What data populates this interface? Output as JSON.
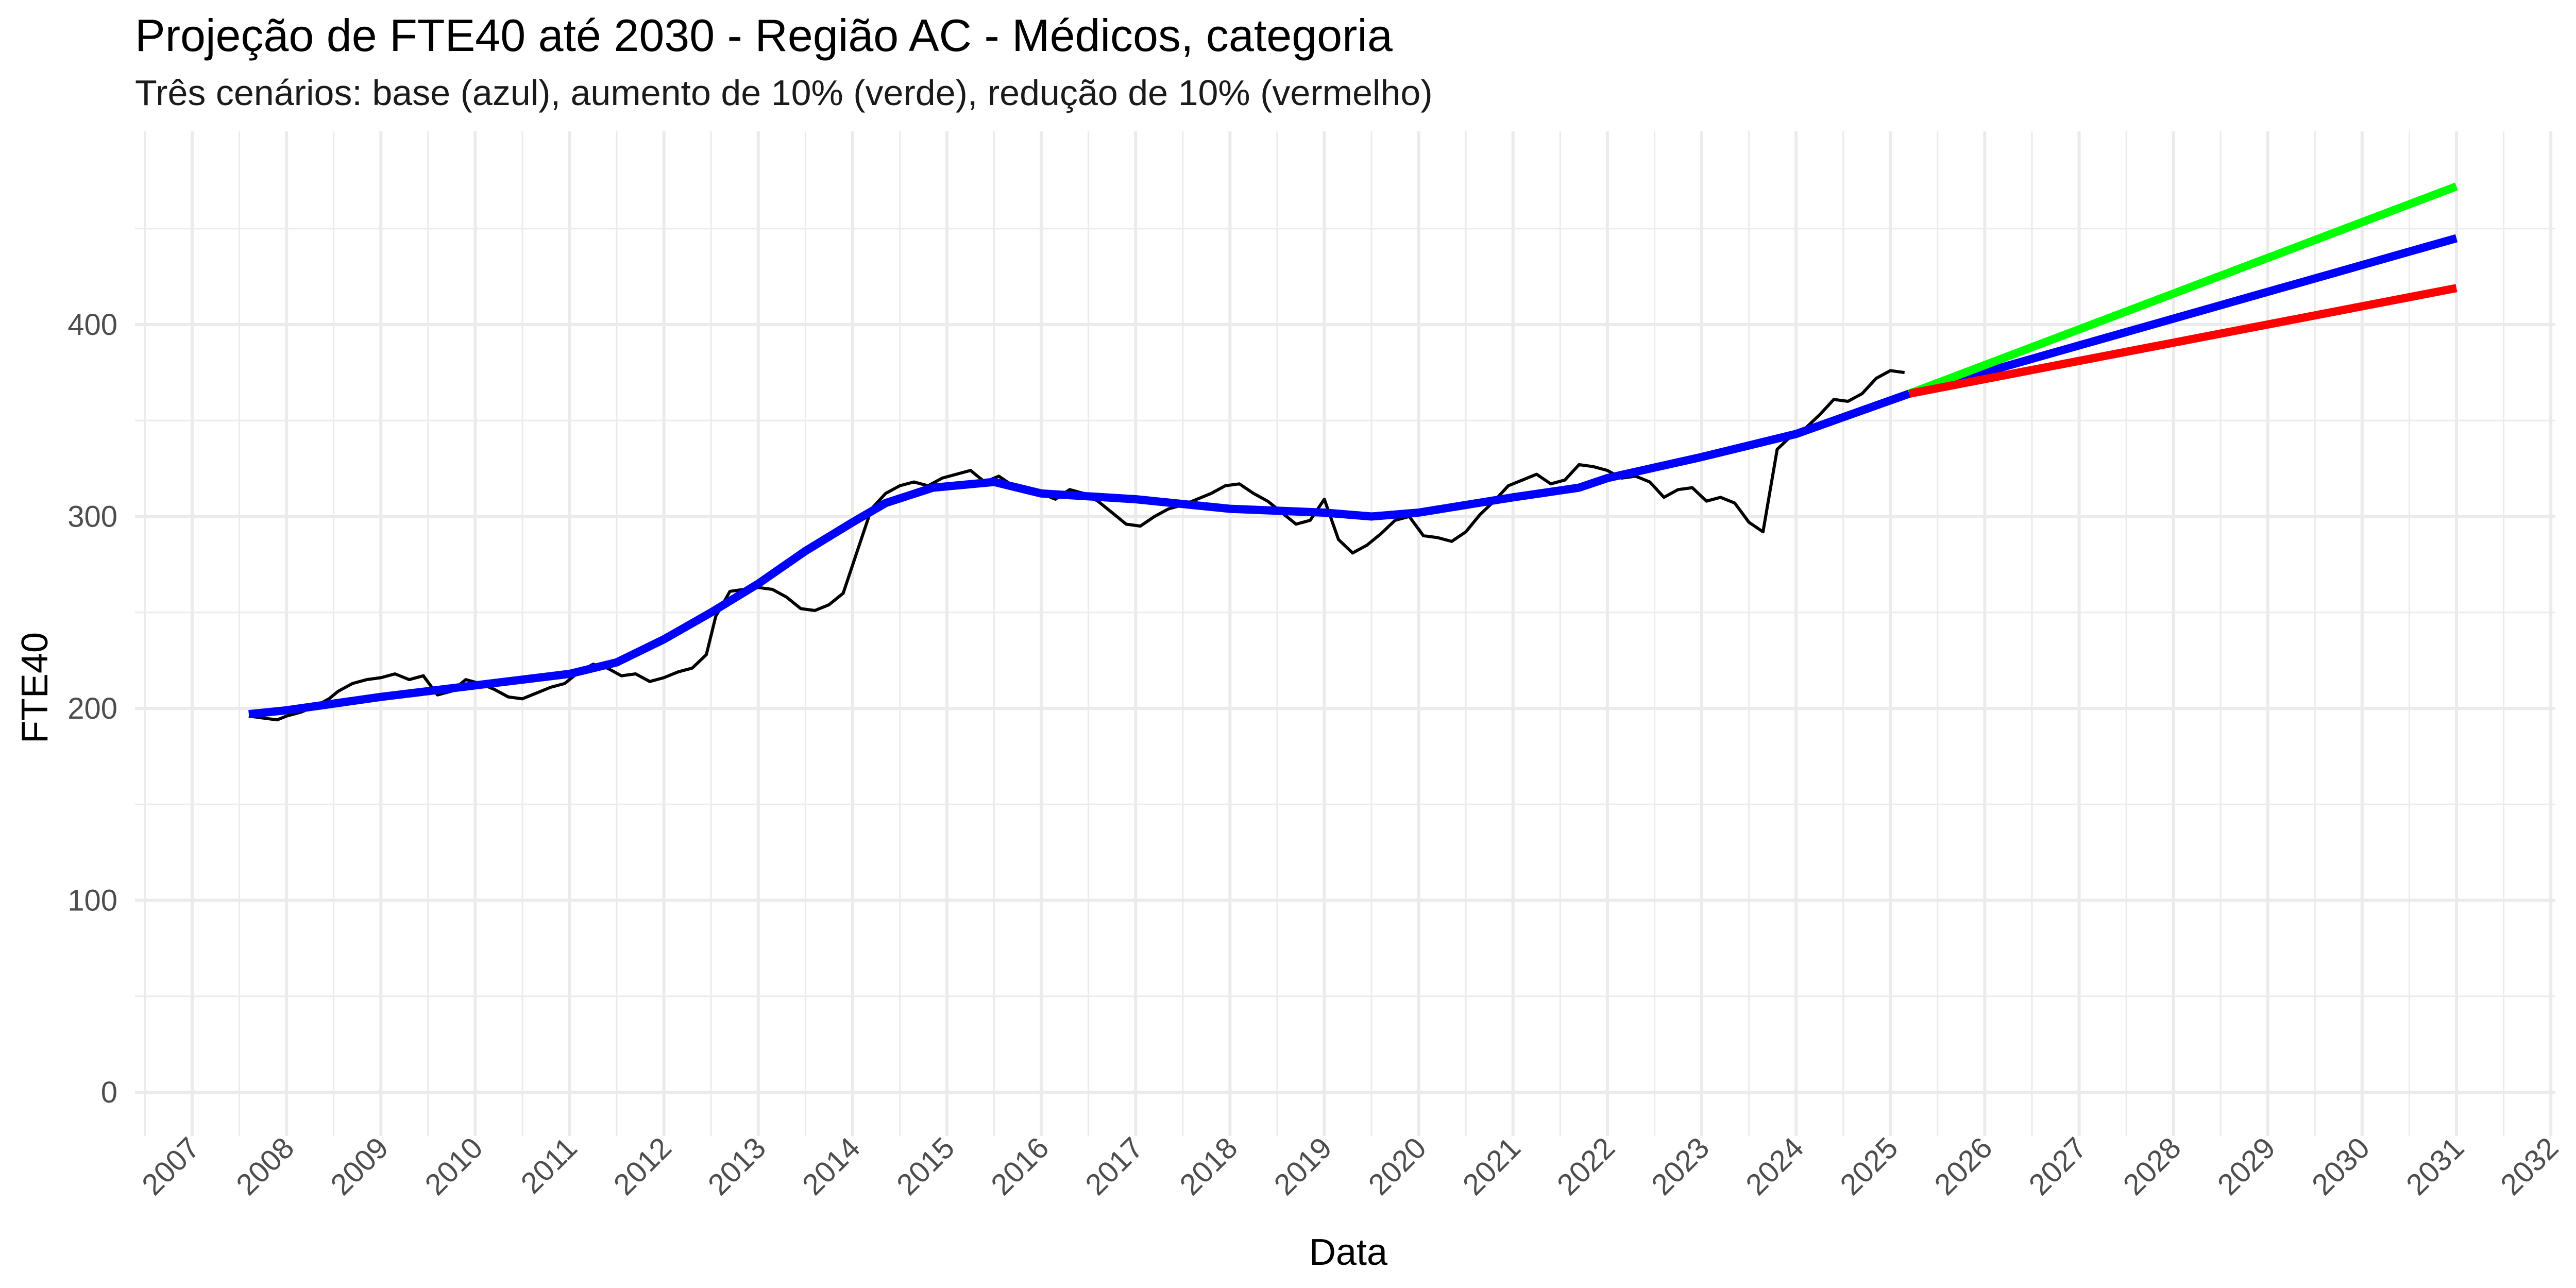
{
  "chart_data": {
    "type": "line",
    "title": "Projeção de FTE40 até 2030 - Região AC - Médicos, categoria",
    "subtitle": "Três cenários: base (azul), aumento de 10% (verde), redução de 10% (vermelho)",
    "xlabel": "Data",
    "ylabel": "FTE40",
    "xlim": [
      2006.5,
      2032.2
    ],
    "ylim": [
      -20,
      495
    ],
    "y_ticks": [
      0,
      100,
      200,
      300,
      400
    ],
    "x_ticks": [
      2007,
      2008,
      2009,
      2010,
      2011,
      2012,
      2013,
      2014,
      2015,
      2016,
      2017,
      2018,
      2019,
      2020,
      2021,
      2022,
      2023,
      2024,
      2025,
      2026,
      2027,
      2028,
      2029,
      2030,
      2031,
      2032
    ],
    "grid": true,
    "legend": "none",
    "series": [
      {
        "color": "#000000",
        "x": [
          2007.6,
          2007.75,
          2007.9,
          2008.0,
          2008.15,
          2008.3,
          2008.45,
          2008.55,
          2008.7,
          2008.85,
          2009.0,
          2009.15,
          2009.3,
          2009.45,
          2009.6,
          2009.75,
          2009.9,
          2010.05,
          2010.2,
          2010.35,
          2010.5,
          2010.65,
          2010.8,
          2010.95,
          2011.1,
          2011.25,
          2011.4,
          2011.55,
          2011.7,
          2011.85,
          2012.0,
          2012.15,
          2012.3,
          2012.45,
          2012.55,
          2012.7,
          2012.85,
          2013.0,
          2013.15,
          2013.3,
          2013.45,
          2013.6,
          2013.75,
          2013.9,
          2014.05,
          2014.2,
          2014.35,
          2014.5,
          2014.65,
          2014.8,
          2014.95,
          2015.1,
          2015.25,
          2015.4,
          2015.55,
          2015.7,
          2015.85,
          2016.0,
          2016.15,
          2016.3,
          2016.45,
          2016.6,
          2016.75,
          2016.9,
          2017.05,
          2017.2,
          2017.35,
          2017.5,
          2017.65,
          2017.8,
          2017.95,
          2018.1,
          2018.25,
          2018.4,
          2018.55,
          2018.7,
          2018.85,
          2019.0,
          2019.15,
          2019.3,
          2019.45,
          2019.6,
          2019.75,
          2019.9,
          2020.05,
          2020.2,
          2020.35,
          2020.5,
          2020.65,
          2020.8,
          2020.95,
          2021.1,
          2021.25,
          2021.4,
          2021.55,
          2021.7,
          2021.85,
          2022.0,
          2022.15,
          2022.3,
          2022.45,
          2022.6,
          2022.75,
          2022.9,
          2023.05,
          2023.2,
          2023.35,
          2023.5,
          2023.65,
          2023.8,
          2023.95,
          2024.1,
          2024.25,
          2024.4,
          2024.55,
          2024.7,
          2024.85,
          2025.0,
          2025.15
        ],
        "values": [
          196,
          195,
          194,
          196,
          198,
          201,
          205,
          209,
          213,
          215,
          216,
          218,
          215,
          217,
          207,
          209,
          215,
          213,
          210,
          206,
          205,
          208,
          211,
          213,
          219,
          223,
          221,
          217,
          218,
          214,
          216,
          219,
          221,
          228,
          248,
          261,
          262,
          263,
          262,
          258,
          252,
          251,
          254,
          260,
          282,
          304,
          312,
          316,
          318,
          316,
          320,
          322,
          324,
          318,
          321,
          316,
          315,
          312,
          309,
          314,
          312,
          308,
          302,
          296,
          295,
          300,
          304,
          306,
          309,
          312,
          316,
          317,
          312,
          308,
          302,
          296,
          298,
          309,
          288,
          281,
          285,
          291,
          298,
          300,
          290,
          289,
          287,
          292,
          301,
          308,
          316,
          319,
          322,
          317,
          319,
          327,
          326,
          324,
          320,
          321,
          318,
          310,
          314,
          315,
          308,
          310,
          307,
          297,
          292,
          335,
          342,
          346,
          353,
          361,
          360,
          364,
          372,
          376,
          375
        ]
      },
      {
        "color": "#0000ff",
        "x": [
          2007.6,
          2008.0,
          2009.0,
          2010.0,
          2011.0,
          2011.5,
          2012.0,
          2012.5,
          2013.0,
          2013.5,
          2014.0,
          2014.35,
          2014.85,
          2015.5,
          2016.0,
          2017.0,
          2018.0,
          2019.0,
          2019.5,
          2020.0,
          2021.0,
          2021.7,
          2022.0,
          2023.0,
          2024.0,
          2025.2
        ],
        "values": [
          197,
          199,
          206,
          212,
          218,
          224,
          236,
          250,
          265,
          282,
          297,
          307,
          315,
          318,
          312,
          309,
          304,
          302,
          300,
          302,
          310,
          315,
          320,
          331,
          343,
          364
        ]
      },
      {
        "color": "#0000ff",
        "x": [
          2025.2,
          2031.0
        ],
        "values": [
          364,
          445
        ]
      },
      {
        "color": "#00ff00",
        "x": [
          2025.2,
          2031.0
        ],
        "values": [
          364,
          472
        ]
      },
      {
        "color": "#ff0000",
        "x": [
          2025.2,
          2031.0
        ],
        "values": [
          364,
          419
        ]
      }
    ]
  }
}
